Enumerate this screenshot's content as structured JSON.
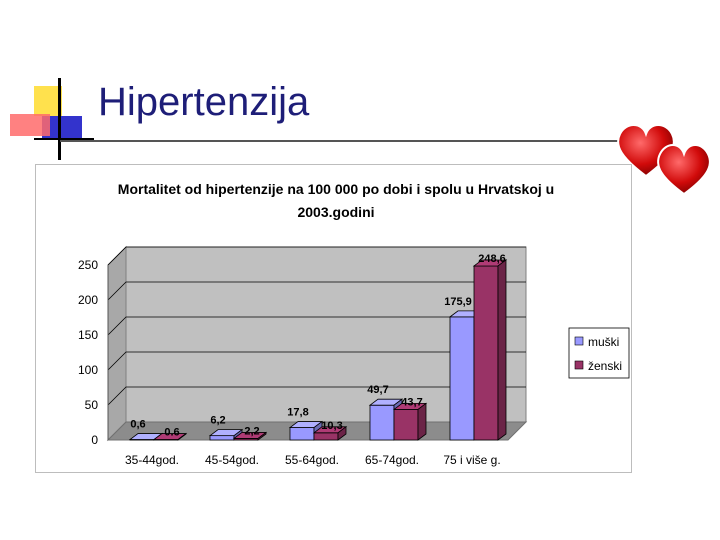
{
  "slide": {
    "title": "Hipertenzija",
    "logo_icon": "slide-logo-squares",
    "decoration_icon": "hearts-icon"
  },
  "chart_data": {
    "type": "bar",
    "title_lines": [
      "Mortalitet od hipertenzije na 100 000 po dobi i spolu u Hrvatskoj u",
      "2003.godini"
    ],
    "categories": [
      "35-44god.",
      "45-54god.",
      "55-64god.",
      "65-74god.",
      "75 i više g."
    ],
    "series": [
      {
        "name": "muški",
        "values": [
          0.6,
          6.2,
          17.8,
          49.7,
          175.9
        ],
        "labels": [
          "0,6",
          "6,2",
          "17,8",
          "49,7",
          "175,9"
        ],
        "color": "#9999ff"
      },
      {
        "name": "ženski",
        "values": [
          0.6,
          2.2,
          10.3,
          43.7,
          248.6
        ],
        "labels": [
          "0.6",
          "2,2",
          "10,3",
          "43,7",
          "248,6"
        ],
        "color": "#993366"
      }
    ],
    "yticks": [
      0,
      50,
      100,
      150,
      200,
      250
    ],
    "ylim": [
      0,
      250
    ],
    "legend_position": "right",
    "three_d": true,
    "wall_color": "#c0c0c0"
  }
}
